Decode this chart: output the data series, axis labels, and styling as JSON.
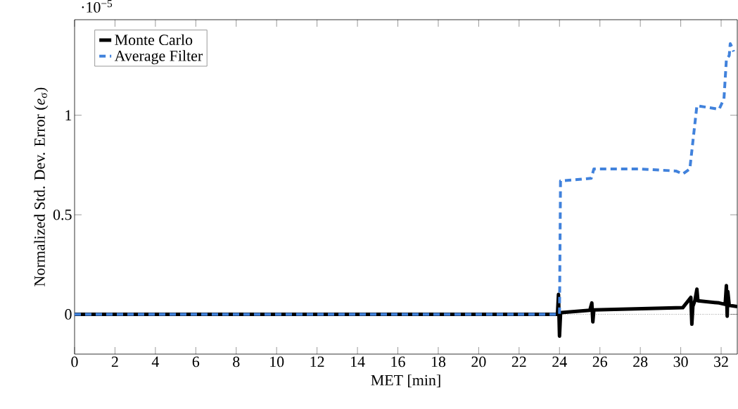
{
  "chart_data": {
    "type": "line",
    "xlabel": "MET [min]",
    "ylabel": "Normalized Std. Dev. Error (*e*$_{σ}$)",
    "annotations": [
      "·10$^{−5}$"
    ],
    "xlim": [
      0,
      32.8
    ],
    "ylim": [
      -0.2,
      1.48
    ],
    "xticks": [
      0,
      2,
      4,
      6,
      8,
      10,
      12,
      14,
      16,
      18,
      20,
      22,
      24,
      26,
      28,
      30,
      32
    ],
    "yticks": [
      0,
      0.5,
      1
    ],
    "legend": "top left",
    "marker": "none",
    "ref_lines": [
      {
        "axis": "y",
        "value": 0,
        "line_style": "dotted",
        "color": "#000000"
      }
    ],
    "series": [
      {
        "name": "Monte Carlo",
        "color": "#000000",
        "line_style": "solid",
        "x": [
          0,
          23.9,
          23.95,
          24.0,
          24.05,
          24.1,
          25.5,
          25.6,
          25.65,
          25.7,
          30.1,
          30.5,
          30.55,
          30.6,
          30.7,
          30.8,
          30.85,
          31.9,
          32.2,
          32.26,
          32.3,
          32.33,
          32.4,
          32.8
        ],
        "values": [
          0,
          0,
          0.1,
          -0.11,
          0,
          0.009,
          0.02,
          0.057,
          -0.038,
          0.022,
          0.033,
          0.085,
          -0.05,
          0.04,
          0.068,
          0.126,
          0.068,
          0.057,
          0.05,
          0.144,
          -0.01,
          0.114,
          0.045,
          0.039
        ]
      },
      {
        "name": "Average Filter",
        "color": "#4182dc",
        "line_style": "dashed",
        "x": [
          0,
          24.0,
          24.05,
          25.57,
          25.7,
          28.0,
          29.76,
          30.1,
          30.45,
          30.8,
          31.9,
          32.14,
          32.26,
          32.4,
          32.45,
          32.55,
          32.62
        ],
        "values": [
          0,
          0,
          0.67,
          0.683,
          0.73,
          0.73,
          0.72,
          0.705,
          0.73,
          1.048,
          1.03,
          1.083,
          1.28,
          1.3,
          1.36,
          1.34,
          1.32
        ]
      }
    ]
  }
}
